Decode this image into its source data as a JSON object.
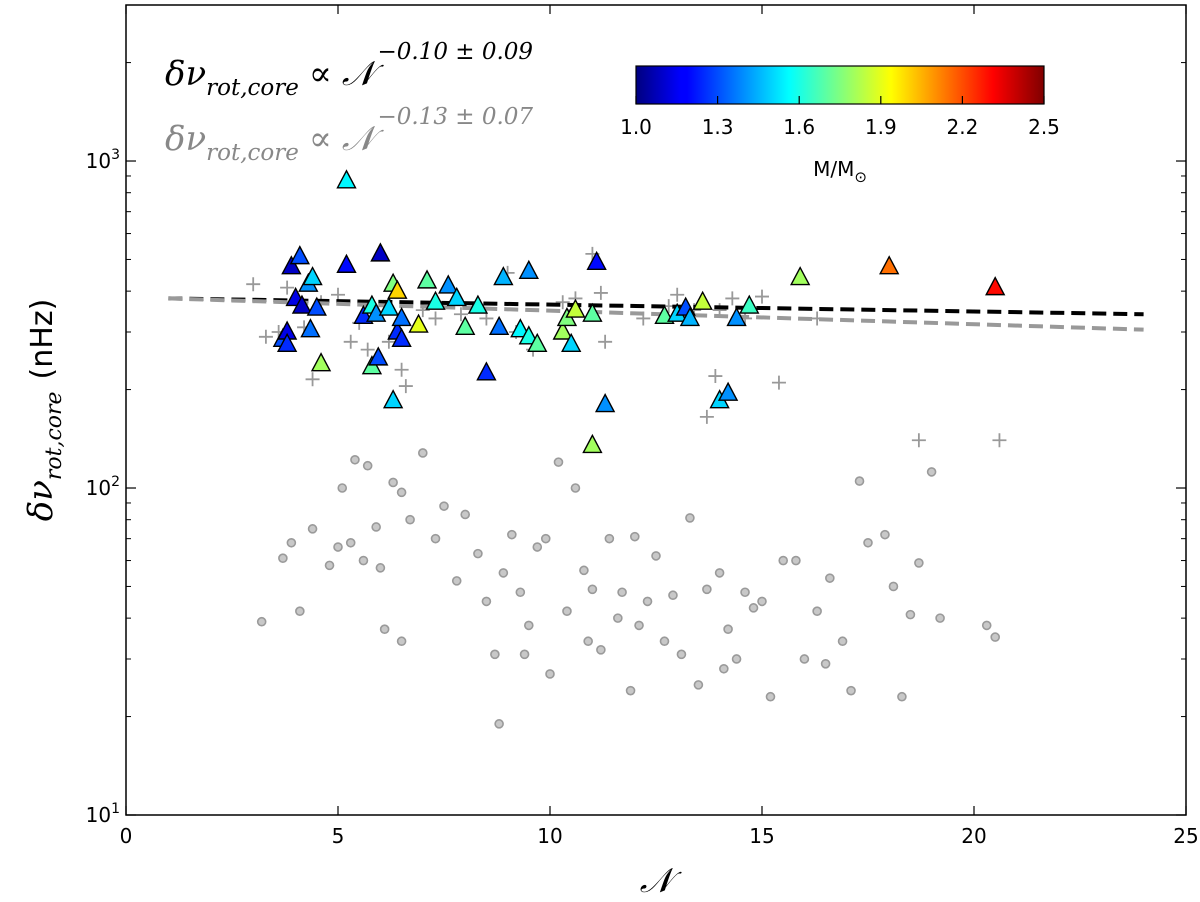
{
  "chart_data": {
    "type": "scatter",
    "x_axis": {
      "label": "𝒩",
      "range": [
        0,
        25
      ],
      "ticks": [
        "0",
        "5",
        "10",
        "15",
        "20",
        "25"
      ],
      "scale": "linear"
    },
    "y_axis": {
      "label_symbol": "δν",
      "label_subscript": "rot,core",
      "label_unit": "(nHz)",
      "range": [
        10,
        3000
      ],
      "scale": "log",
      "ticks": [
        {
          "value": 10,
          "base": "10",
          "exp": "1"
        },
        {
          "value": 100,
          "base": "10",
          "exp": "2"
        },
        {
          "value": 1000,
          "base": "10",
          "exp": "3"
        }
      ]
    },
    "annotations": [
      {
        "lhs": "δν",
        "sub": "rot,core",
        "rel": "∝",
        "rhs": "𝒩",
        "exponent": "−0.10 ± 0.09",
        "color": "#000000"
      },
      {
        "lhs": "δν",
        "sub": "rot,core",
        "rel": "∝",
        "rhs": "𝒩",
        "exponent": "−0.13 ± 0.07",
        "color": "#888888"
      }
    ],
    "colorbar": {
      "label": "M/M",
      "label_sub": "⊙",
      "range": [
        1.0,
        2.5
      ],
      "ticks": [
        "1.0",
        "1.3",
        "1.6",
        "1.9",
        "2.2",
        "2.5"
      ],
      "colormap": "jet"
    },
    "fits": [
      {
        "name": "fit-black",
        "color": "#000000",
        "points": [
          [
            1,
            380
          ],
          [
            24,
            340
          ]
        ]
      },
      {
        "name": "fit-gray",
        "color": "#999999",
        "points": [
          [
            1,
            380
          ],
          [
            24,
            305
          ]
        ]
      }
    ],
    "series": [
      {
        "name": "core-rotation-triangles",
        "marker": "triangle",
        "points": [
          [
            3.7,
            285,
            1.3
          ],
          [
            3.8,
            300,
            1.15
          ],
          [
            3.8,
            275,
            1.25
          ],
          [
            3.9,
            475,
            1.1
          ],
          [
            4.0,
            380,
            1.15
          ],
          [
            4.1,
            510,
            1.3
          ],
          [
            4.15,
            360,
            1.1
          ],
          [
            4.3,
            420,
            1.4
          ],
          [
            4.4,
            440,
            1.5
          ],
          [
            4.35,
            305,
            1.35
          ],
          [
            4.5,
            355,
            1.3
          ],
          [
            4.6,
            240,
            1.8
          ],
          [
            5.2,
            870,
            1.55
          ],
          [
            5.2,
            480,
            1.2
          ],
          [
            5.6,
            335,
            1.25
          ],
          [
            5.8,
            235,
            1.7
          ],
          [
            5.8,
            360,
            1.6
          ],
          [
            5.9,
            340,
            1.4
          ],
          [
            5.95,
            250,
            1.3
          ],
          [
            6.0,
            520,
            1.1
          ],
          [
            6.2,
            355,
            1.5
          ],
          [
            6.3,
            420,
            1.75
          ],
          [
            6.4,
            300,
            1.25
          ],
          [
            6.5,
            330,
            1.35
          ],
          [
            6.3,
            185,
            1.5
          ],
          [
            6.4,
            400,
            2.0
          ],
          [
            6.5,
            285,
            1.25
          ],
          [
            6.9,
            315,
            1.9
          ],
          [
            7.1,
            430,
            1.7
          ],
          [
            7.3,
            370,
            1.6
          ],
          [
            7.6,
            415,
            1.4
          ],
          [
            7.8,
            380,
            1.5
          ],
          [
            8.0,
            310,
            1.7
          ],
          [
            8.3,
            360,
            1.6
          ],
          [
            8.5,
            225,
            1.25
          ],
          [
            8.8,
            310,
            1.35
          ],
          [
            8.9,
            440,
            1.45
          ],
          [
            9.3,
            305,
            1.55
          ],
          [
            9.5,
            460,
            1.4
          ],
          [
            9.5,
            290,
            1.6
          ],
          [
            9.7,
            275,
            1.7
          ],
          [
            10.3,
            300,
            1.8
          ],
          [
            10.4,
            330,
            1.75
          ],
          [
            10.5,
            275,
            1.5
          ],
          [
            10.6,
            350,
            1.85
          ],
          [
            11.0,
            340,
            1.7
          ],
          [
            11.1,
            490,
            1.2
          ],
          [
            11.0,
            135,
            1.8
          ],
          [
            11.3,
            180,
            1.4
          ],
          [
            12.7,
            335,
            1.7
          ],
          [
            13.0,
            340,
            1.5
          ],
          [
            13.2,
            355,
            1.3
          ],
          [
            13.3,
            330,
            1.45
          ],
          [
            13.6,
            370,
            1.85
          ],
          [
            14.0,
            185,
            1.5
          ],
          [
            14.2,
            195,
            1.4
          ],
          [
            14.4,
            330,
            1.4
          ],
          [
            14.7,
            360,
            1.65
          ],
          [
            15.9,
            440,
            1.8
          ],
          [
            18.0,
            475,
            2.15
          ],
          [
            20.5,
            410,
            2.3
          ]
        ]
      },
      {
        "name": "plus-markers",
        "marker": "plus",
        "color": "#999999",
        "points": [
          [
            3.0,
            420
          ],
          [
            3.3,
            290
          ],
          [
            3.6,
            300
          ],
          [
            3.8,
            410
          ],
          [
            4.2,
            310
          ],
          [
            4.4,
            215
          ],
          [
            4.6,
            370
          ],
          [
            5.0,
            390
          ],
          [
            5.3,
            280
          ],
          [
            5.5,
            320
          ],
          [
            5.7,
            265
          ],
          [
            6.2,
            280
          ],
          [
            6.5,
            230
          ],
          [
            6.6,
            205
          ],
          [
            7.0,
            350
          ],
          [
            7.3,
            330
          ],
          [
            7.9,
            340
          ],
          [
            8.5,
            330
          ],
          [
            9.0,
            455
          ],
          [
            9.2,
            300
          ],
          [
            9.6,
            265
          ],
          [
            10.3,
            370
          ],
          [
            10.6,
            380
          ],
          [
            11.0,
            520
          ],
          [
            11.2,
            395
          ],
          [
            11.3,
            280
          ],
          [
            12.2,
            330
          ],
          [
            12.8,
            360
          ],
          [
            13.0,
            390
          ],
          [
            13.4,
            350
          ],
          [
            13.9,
            220
          ],
          [
            14.0,
            350
          ],
          [
            14.3,
            380
          ],
          [
            14.6,
            330
          ],
          [
            15.0,
            385
          ],
          [
            15.4,
            210
          ],
          [
            16.3,
            330
          ],
          [
            18.7,
            140
          ],
          [
            20.6,
            140
          ],
          [
            13.7,
            165
          ]
        ]
      },
      {
        "name": "gray-circles",
        "marker": "circle",
        "color": "#aaaaaa",
        "points": [
          [
            3.2,
            39
          ],
          [
            3.7,
            61
          ],
          [
            3.9,
            68
          ],
          [
            4.1,
            42
          ],
          [
            4.4,
            75
          ],
          [
            4.8,
            58
          ],
          [
            5.0,
            66
          ],
          [
            5.1,
            100
          ],
          [
            5.3,
            68
          ],
          [
            5.4,
            122
          ],
          [
            5.6,
            60
          ],
          [
            5.7,
            117
          ],
          [
            5.9,
            76
          ],
          [
            6.0,
            57
          ],
          [
            6.3,
            104
          ],
          [
            6.5,
            97
          ],
          [
            6.7,
            80
          ],
          [
            6.5,
            34
          ],
          [
            7.0,
            128
          ],
          [
            7.3,
            70
          ],
          [
            7.5,
            88
          ],
          [
            7.8,
            52
          ],
          [
            8.0,
            83
          ],
          [
            8.3,
            63
          ],
          [
            8.5,
            45
          ],
          [
            8.7,
            31
          ],
          [
            8.9,
            55
          ],
          [
            9.1,
            72
          ],
          [
            9.3,
            48
          ],
          [
            9.5,
            38
          ],
          [
            9.7,
            66
          ],
          [
            9.9,
            70
          ],
          [
            10.0,
            27
          ],
          [
            10.2,
            120
          ],
          [
            10.4,
            42
          ],
          [
            10.6,
            100
          ],
          [
            10.8,
            56
          ],
          [
            11.0,
            49
          ],
          [
            11.2,
            32
          ],
          [
            11.4,
            70
          ],
          [
            11.6,
            40
          ],
          [
            11.9,
            24
          ],
          [
            12.1,
            38
          ],
          [
            12.3,
            45
          ],
          [
            12.5,
            62
          ],
          [
            12.7,
            34
          ],
          [
            12.9,
            47
          ],
          [
            13.1,
            31
          ],
          [
            13.3,
            81
          ],
          [
            13.5,
            25
          ],
          [
            13.7,
            49
          ],
          [
            14.0,
            55
          ],
          [
            14.2,
            37
          ],
          [
            14.4,
            30
          ],
          [
            14.6,
            48
          ],
          [
            14.8,
            43
          ],
          [
            15.0,
            45
          ],
          [
            15.2,
            23
          ],
          [
            15.5,
            60
          ],
          [
            15.8,
            60
          ],
          [
            16.0,
            30
          ],
          [
            16.3,
            42
          ],
          [
            16.6,
            53
          ],
          [
            16.9,
            34
          ],
          [
            17.1,
            24
          ],
          [
            17.3,
            105
          ],
          [
            17.5,
            68
          ],
          [
            17.9,
            72
          ],
          [
            18.1,
            50
          ],
          [
            18.3,
            23
          ],
          [
            18.5,
            41
          ],
          [
            18.7,
            59
          ],
          [
            19.0,
            112
          ],
          [
            19.2,
            40
          ],
          [
            20.3,
            38
          ],
          [
            20.5,
            35
          ],
          [
            6.1,
            37
          ],
          [
            8.8,
            19
          ],
          [
            12.0,
            71
          ],
          [
            14.1,
            28
          ],
          [
            10.9,
            34
          ],
          [
            16.5,
            29
          ],
          [
            9.4,
            31
          ],
          [
            11.7,
            48
          ]
        ]
      }
    ]
  }
}
